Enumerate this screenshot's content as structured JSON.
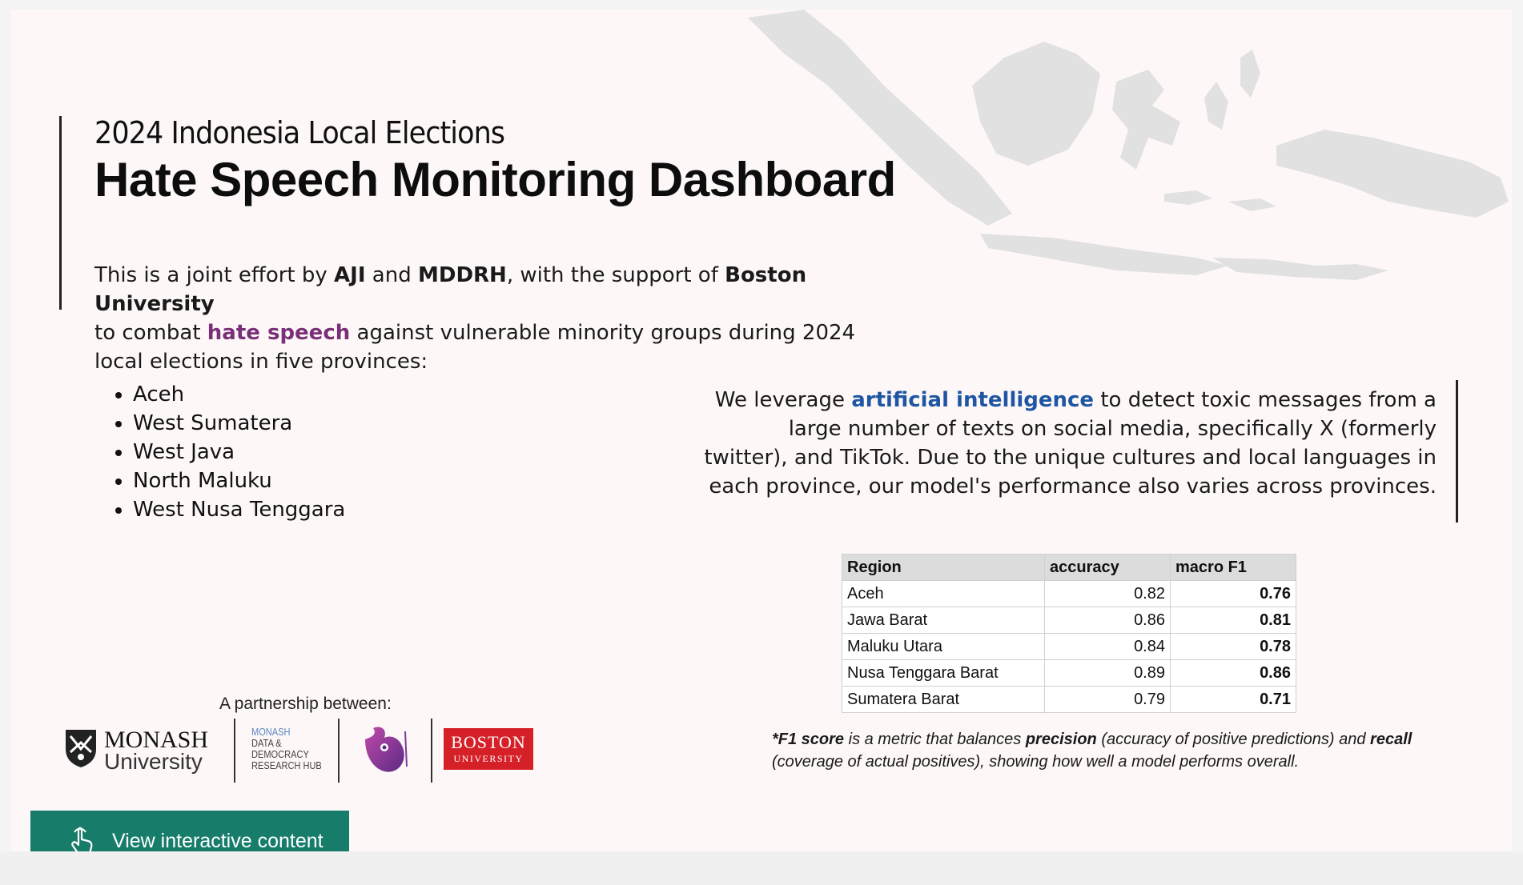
{
  "header": {
    "subtitle": "2024 Indonesia Local Elections",
    "title": "Hate Speech Monitoring Dashboard"
  },
  "intro": {
    "p1": "This is a joint effort by ",
    "org1": "AJI",
    "p2": " and ",
    "org2": "MDDRH",
    "p3": ", with the support of ",
    "org3": "Boston University",
    "p4": " to combat ",
    "highlight": "hate speech",
    "p5": " against vulnerable minority groups during 2024 local elections in five provinces:"
  },
  "provinces": [
    "Aceh",
    "West Sumatera",
    "West Java",
    "North Maluku",
    "West Nusa Tenggara"
  ],
  "ai_text": {
    "p1": "We leverage ",
    "highlight": "artificial intelligence",
    "p2": " to detect toxic messages from a large number of texts on social media, specifically X (formerly twitter), and TikTok. Due to the unique cultures and local languages in each province, our model's performance also varies across provinces."
  },
  "metrics_table": {
    "headers": [
      "Region",
      "accuracy",
      "macro F1"
    ],
    "rows": [
      {
        "region": "Aceh",
        "accuracy": "0.82",
        "f1": "0.76"
      },
      {
        "region": "Jawa Barat",
        "accuracy": "0.86",
        "f1": "0.81"
      },
      {
        "region": "Maluku Utara",
        "accuracy": "0.84",
        "f1": "0.78"
      },
      {
        "region": "Nusa Tenggara Barat",
        "accuracy": "0.89",
        "f1": "0.86"
      },
      {
        "region": "Sumatera Barat",
        "accuracy": "0.79",
        "f1": "0.71"
      }
    ]
  },
  "footnote": {
    "term": "*F1 score",
    "p1": " is a metric that balances ",
    "precision": "precision",
    "p2": " (accuracy of positive predictions) and ",
    "recall": "recall",
    "p3": " (coverage of actual positives), showing how well a model performs overall."
  },
  "partners": {
    "label": "A partnership between:",
    "monash_line1": "MONASH",
    "monash_line2": "University",
    "mddrh_line1": "MONASH",
    "mddrh_line2": "DATA &",
    "mddrh_line3": "DEMOCRACY",
    "mddrh_line4": "RESEARCH HUB",
    "bu_line1": "BOSTON",
    "bu_line2": "UNIVERSITY"
  },
  "cta": {
    "label": "View interactive content",
    "icon": "pointer-hand-icon"
  },
  "colors": {
    "cta_bg": "#177d6a",
    "hate_speech": "#7a2f78",
    "ai": "#1f56a3",
    "bu_red": "#d62027"
  }
}
